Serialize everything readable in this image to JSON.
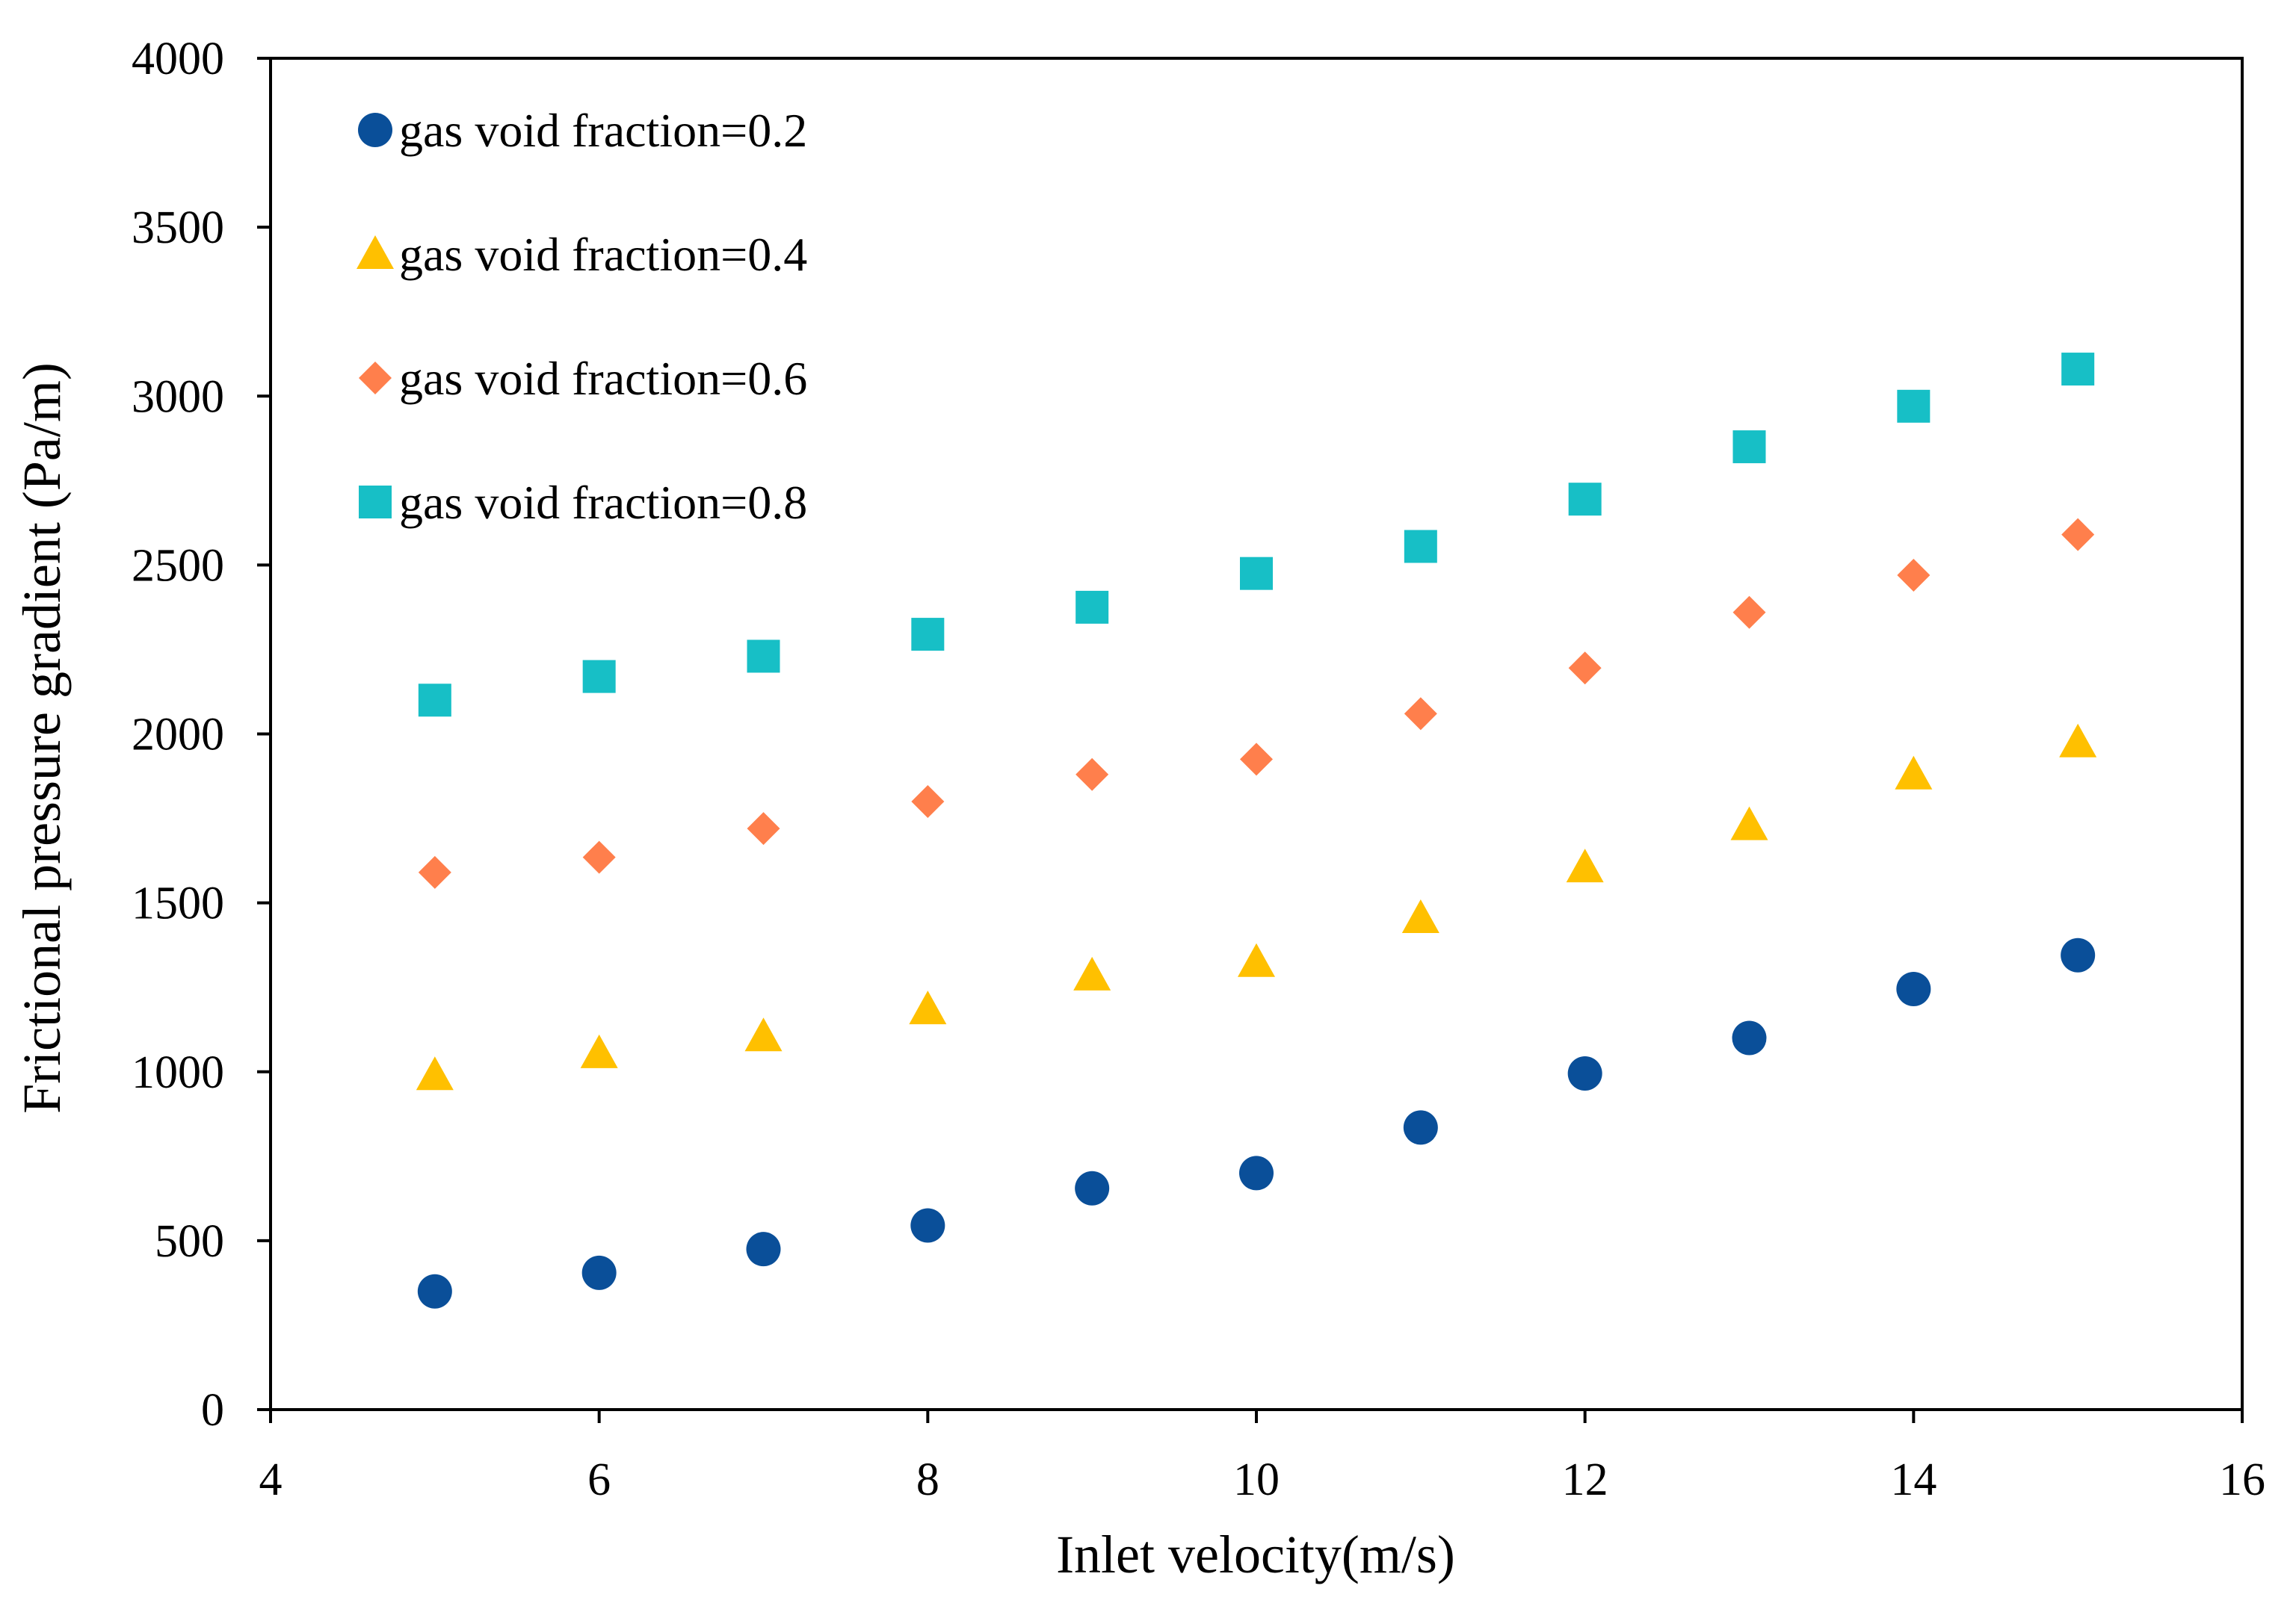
{
  "chart_data": {
    "type": "scatter",
    "title": "",
    "xlabel": "Inlet velocity(m/s)",
    "ylabel": "Frictional pressure gradient (Pa/m)",
    "xlim": [
      4,
      16
    ],
    "ylim": [
      0,
      4000
    ],
    "xticks": [
      "4",
      "6",
      "8",
      "10",
      "12",
      "14",
      "16"
    ],
    "yticks": [
      "0",
      "500",
      "1000",
      "1500",
      "2000",
      "2500",
      "3000",
      "3500",
      "4000"
    ],
    "grid": false,
    "legend_position": "top-left",
    "x": [
      5,
      6,
      7,
      8,
      9,
      10,
      11,
      12,
      13,
      14,
      15
    ],
    "series": [
      {
        "name": "gas void fraction=0.2",
        "marker": "circle",
        "color": "#0A4F99",
        "values": [
          350,
          405,
          475,
          545,
          655,
          700,
          835,
          995,
          1100,
          1245,
          1345
        ]
      },
      {
        "name": "gas void fraction=0.4",
        "marker": "triangle",
        "color": "#FFC000",
        "values": [
          990,
          1055,
          1105,
          1185,
          1285,
          1325,
          1455,
          1605,
          1730,
          1880,
          1975
        ]
      },
      {
        "name": "gas void fraction=0.6",
        "marker": "diamond",
        "color": "#FF7F4C",
        "values": [
          1590,
          1635,
          1720,
          1800,
          1880,
          1925,
          2060,
          2195,
          2360,
          2470,
          2590
        ]
      },
      {
        "name": "gas void fraction=0.8",
        "marker": "square",
        "color": "#17BFC6",
        "values": [
          2100,
          2170,
          2230,
          2295,
          2375,
          2475,
          2555,
          2695,
          2850,
          2970,
          3080
        ]
      }
    ]
  }
}
